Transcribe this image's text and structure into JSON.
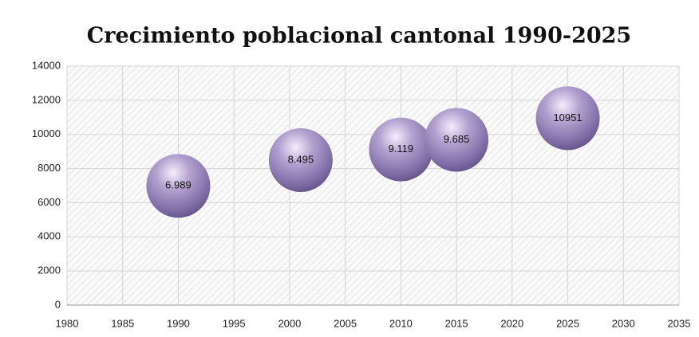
{
  "chart_data": {
    "type": "scatter",
    "title": "Crecimiento poblacional cantonal 1990-2025",
    "x": [
      1990,
      2001,
      2010,
      2015,
      2025
    ],
    "series": [
      {
        "color": "#9b86bd",
        "values": [
          6989,
          8495,
          9119,
          9685,
          10951
        ],
        "value_labels": [
          "6.989",
          "8.495",
          "9.119",
          "9.685",
          "10951"
        ]
      }
    ],
    "xlim": [
      1980,
      2035
    ],
    "xticks": [
      1980,
      1985,
      1990,
      1995,
      2000,
      2005,
      2010,
      2015,
      2020,
      2025,
      2030,
      2035
    ],
    "ylim": [
      0,
      14000
    ],
    "yticks": [
      0,
      2000,
      4000,
      6000,
      8000,
      10000,
      12000,
      14000
    ],
    "grid": true
  }
}
